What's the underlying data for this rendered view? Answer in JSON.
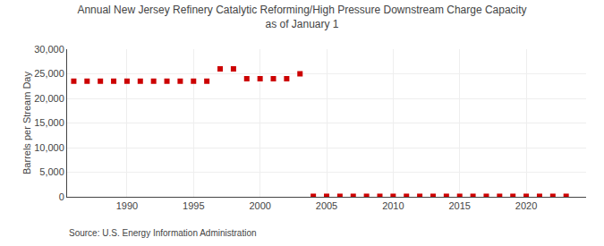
{
  "chart_data": {
    "type": "scatter",
    "title": "Annual New Jersey Refinery Catalytic Reforming/High Pressure Downstream Charge Capacity\nas of January 1",
    "ylabel": "Barrels per Stream Day",
    "annotations": [
      "Source: U.S. Energy Information Administration"
    ],
    "x": [
      1986,
      1987,
      1988,
      1989,
      1990,
      1991,
      1992,
      1993,
      1994,
      1995,
      1996,
      1997,
      1998,
      1999,
      2000,
      2001,
      2002,
      2003,
      2004,
      2005,
      2006,
      2007,
      2008,
      2009,
      2010,
      2011,
      2012,
      2013,
      2014,
      2015,
      2016,
      2017,
      2018,
      2019,
      2020,
      2021,
      2022,
      2023
    ],
    "values": [
      23500,
      23500,
      23500,
      23500,
      23500,
      23500,
      23500,
      23500,
      23500,
      23500,
      23500,
      26000,
      26000,
      24000,
      24000,
      24000,
      24000,
      25000,
      100,
      100,
      100,
      100,
      100,
      100,
      100,
      100,
      100,
      100,
      100,
      100,
      100,
      100,
      100,
      100,
      100,
      100,
      100,
      100
    ],
    "color": "#cc0000",
    "marker": "square",
    "xlim": [
      1985.5,
      2024.5
    ],
    "xticks": [
      1990,
      1995,
      2000,
      2005,
      2010,
      2015,
      2020
    ],
    "ylim": [
      0,
      30000
    ],
    "yticks": [
      0,
      {
        "value": 5000,
        "label": "5,000"
      },
      {
        "value": 10000,
        "label": "10,000"
      },
      {
        "value": 15000,
        "label": "15,000"
      },
      {
        "value": 20000,
        "label": "20,000"
      },
      {
        "value": 25000,
        "label": "25,000"
      },
      {
        "value": 30000,
        "label": "30,000"
      }
    ],
    "grid": true
  }
}
